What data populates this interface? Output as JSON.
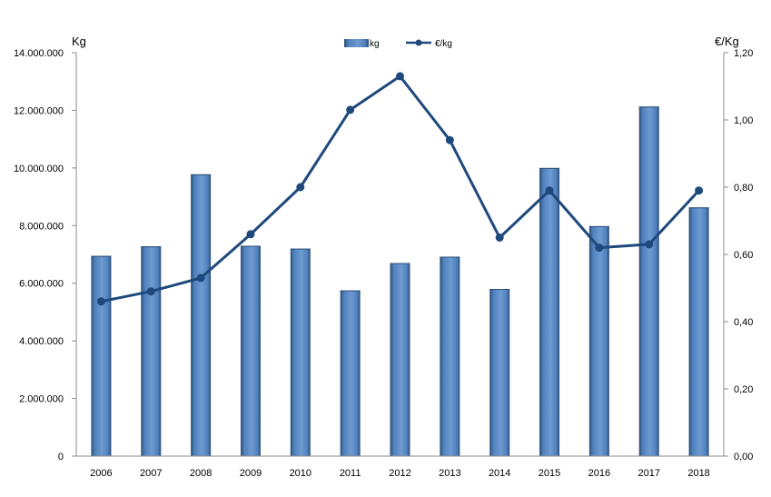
{
  "chart_data": {
    "type": "bar",
    "categories": [
      "2006",
      "2007",
      "2008",
      "2009",
      "2010",
      "2011",
      "2012",
      "2013",
      "2014",
      "2015",
      "2016",
      "2017",
      "2018"
    ],
    "series": [
      {
        "name": "kg",
        "type": "bar",
        "axis": "left",
        "color": "#4f81bd",
        "values": [
          6950000,
          7280000,
          9780000,
          7300000,
          7200000,
          5750000,
          6700000,
          6920000,
          5800000,
          10000000,
          7980000,
          12130000,
          8630000
        ]
      },
      {
        "name": "€/kg",
        "type": "line",
        "axis": "right",
        "color": "#1f497d",
        "values": [
          0.46,
          0.49,
          0.53,
          0.66,
          0.8,
          1.03,
          1.13,
          0.94,
          0.65,
          0.79,
          0.62,
          0.63,
          0.79
        ]
      }
    ],
    "y_left": {
      "label": "Kg",
      "min": 0,
      "max": 14000000,
      "ticks": [
        0,
        2000000,
        4000000,
        6000000,
        8000000,
        10000000,
        12000000,
        14000000
      ],
      "tick_labels": [
        "0",
        "2.000.000",
        "4.000.000",
        "6.000.000",
        "8.000.000",
        "10.000.000",
        "12.000.000",
        "14.000.000"
      ]
    },
    "y_right": {
      "label": "€/Kg",
      "min": 0,
      "max": 1.2,
      "ticks": [
        0,
        0.2,
        0.4,
        0.6,
        0.8,
        1.0,
        1.2
      ],
      "tick_labels": [
        "0,00",
        "0,20",
        "0,40",
        "0,60",
        "0,80",
        "1,00",
        "1,20"
      ]
    },
    "legend": "top-center",
    "grid": false
  }
}
